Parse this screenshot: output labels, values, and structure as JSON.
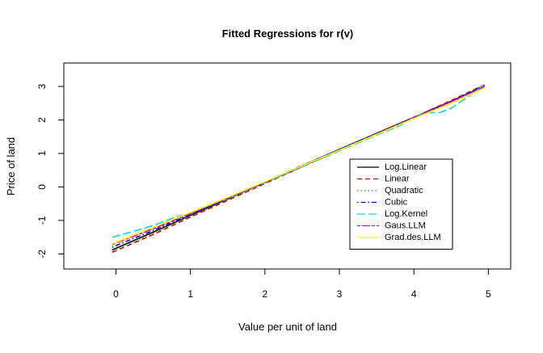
{
  "chart_data": {
    "type": "line",
    "title": "Fitted Regressions for r(v)",
    "xlabel": "Value per unit of land",
    "ylabel": "Price of land",
    "xlim": [
      -0.7,
      5.3
    ],
    "ylim": [
      -2.45,
      3.7
    ],
    "x_ticks": [
      0,
      1,
      2,
      3,
      4,
      5
    ],
    "y_ticks": [
      -2,
      -1,
      0,
      1,
      2,
      3
    ],
    "grid": false,
    "legend_position": "bottom-right",
    "series": [
      {
        "name": "Log.Linear",
        "color": "#000000",
        "dash": "solid",
        "points": [
          [
            -0.05,
            -1.88
          ],
          [
            0.5,
            -1.35
          ],
          [
            1.0,
            -0.85
          ],
          [
            1.5,
            -0.36
          ],
          [
            2.0,
            0.14
          ],
          [
            2.5,
            0.63
          ],
          [
            3.0,
            1.12
          ],
          [
            3.5,
            1.6
          ],
          [
            4.0,
            2.08
          ],
          [
            4.5,
            2.56
          ],
          [
            4.95,
            3.02
          ]
        ]
      },
      {
        "name": "Linear",
        "color": "#dd0000",
        "dash": "dashed",
        "points": [
          [
            -0.05,
            -1.95
          ],
          [
            0.5,
            -1.42
          ],
          [
            1.0,
            -0.9
          ],
          [
            1.5,
            -0.4
          ],
          [
            2.0,
            0.1
          ],
          [
            2.5,
            0.6
          ],
          [
            3.0,
            1.1
          ],
          [
            3.5,
            1.6
          ],
          [
            4.0,
            2.08
          ],
          [
            4.5,
            2.58
          ],
          [
            4.95,
            3.05
          ]
        ]
      },
      {
        "name": "Quadratic",
        "color": "#00aa00",
        "dash": "dotted",
        "points": [
          [
            -0.05,
            -1.9
          ],
          [
            0.5,
            -1.38
          ],
          [
            1.0,
            -0.87
          ],
          [
            1.5,
            -0.38
          ],
          [
            2.0,
            0.12
          ],
          [
            2.5,
            0.61
          ],
          [
            3.0,
            1.1
          ],
          [
            3.5,
            1.58
          ],
          [
            4.0,
            2.06
          ],
          [
            4.5,
            2.55
          ],
          [
            4.95,
            3.03
          ]
        ]
      },
      {
        "name": "Cubic",
        "color": "#0000cc",
        "dash": "dotdash",
        "points": [
          [
            -0.05,
            -1.8
          ],
          [
            0.5,
            -1.3
          ],
          [
            1.0,
            -0.82
          ],
          [
            1.5,
            -0.34
          ],
          [
            2.0,
            0.15
          ],
          [
            2.5,
            0.64
          ],
          [
            3.0,
            1.12
          ],
          [
            3.5,
            1.6
          ],
          [
            4.0,
            2.07
          ],
          [
            4.5,
            2.55
          ],
          [
            4.95,
            3.04
          ]
        ]
      },
      {
        "name": "Log.Kernel",
        "color": "#00dddd",
        "dash": "longdash",
        "points": [
          [
            -0.05,
            -1.5
          ],
          [
            0.2,
            -1.35
          ],
          [
            0.5,
            -1.15
          ],
          [
            0.8,
            -0.9
          ],
          [
            1.0,
            -0.78
          ],
          [
            1.5,
            -0.35
          ],
          [
            2.0,
            0.12
          ],
          [
            2.5,
            0.6
          ],
          [
            3.0,
            1.08
          ],
          [
            3.5,
            1.55
          ],
          [
            3.8,
            1.82
          ],
          [
            4.0,
            2.08
          ],
          [
            4.15,
            2.22
          ],
          [
            4.35,
            2.22
          ],
          [
            4.5,
            2.35
          ],
          [
            4.7,
            2.65
          ],
          [
            4.85,
            2.9
          ],
          [
            4.97,
            3.08
          ]
        ]
      },
      {
        "name": "Gaus.LLM",
        "color": "#dd00dd",
        "dash": "twodash",
        "points": [
          [
            -0.05,
            -1.72
          ],
          [
            0.5,
            -1.25
          ],
          [
            1.0,
            -0.8
          ],
          [
            1.5,
            -0.34
          ],
          [
            2.0,
            0.14
          ],
          [
            2.5,
            0.62
          ],
          [
            3.0,
            1.1
          ],
          [
            3.5,
            1.58
          ],
          [
            4.0,
            2.06
          ],
          [
            4.5,
            2.54
          ],
          [
            4.95,
            3.0
          ]
        ]
      },
      {
        "name": "Grad.des.LLM",
        "color": "#ffff00",
        "dash": "solid",
        "points": [
          [
            -0.05,
            -1.7
          ],
          [
            0.5,
            -1.2
          ],
          [
            1.0,
            -0.76
          ],
          [
            1.5,
            -0.31
          ],
          [
            2.0,
            0.16
          ],
          [
            2.5,
            0.63
          ],
          [
            3.0,
            1.1
          ],
          [
            3.5,
            1.57
          ],
          [
            4.0,
            2.04
          ],
          [
            4.5,
            2.5
          ],
          [
            4.95,
            2.95
          ]
        ]
      }
    ]
  }
}
